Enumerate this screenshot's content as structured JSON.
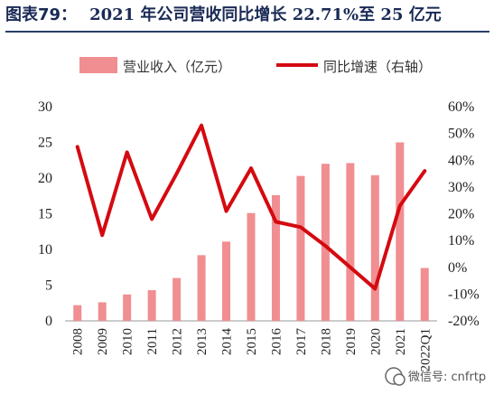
{
  "figure_label": "图表79：",
  "title": "2021 年公司营收同比增长 22.71%至 25 亿元",
  "watermark": "微信号: cnfrtp",
  "colors": {
    "bar": "#f08e92",
    "line": "#d40a10",
    "title": "#1a2a55"
  },
  "chart_data": {
    "type": "bar+line",
    "title": "2021 年公司营收同比增长 22.71%至 25 亿元",
    "categories": [
      "2008",
      "2009",
      "2010",
      "2011",
      "2012",
      "2013",
      "2014",
      "2015",
      "2016",
      "2017",
      "2018",
      "2019",
      "2020",
      "2021",
      "2022Q1"
    ],
    "series": [
      {
        "name": "营业收入（亿元）",
        "type": "bar",
        "axis": "left",
        "values": [
          2.2,
          2.6,
          3.7,
          4.3,
          6.0,
          9.2,
          11.1,
          15.1,
          17.6,
          20.3,
          22.0,
          22.1,
          20.4,
          25.0,
          7.4
        ]
      },
      {
        "name": "同比增速（右轴）",
        "type": "line",
        "axis": "right",
        "values": [
          45,
          12,
          43,
          18,
          35,
          53,
          21,
          37,
          17,
          15,
          8,
          0,
          -8,
          23,
          36
        ]
      }
    ],
    "y_left": {
      "min": 0,
      "max": 30,
      "ticks": [
        "0",
        "5",
        "10",
        "15",
        "20",
        "25",
        "30"
      ]
    },
    "y_right": {
      "min": -20,
      "max": 60,
      "ticks": [
        "-20%",
        "-10%",
        "0%",
        "10%",
        "20%",
        "30%",
        "40%",
        "50%",
        "60%"
      ]
    },
    "legend": "top",
    "grid": false
  }
}
